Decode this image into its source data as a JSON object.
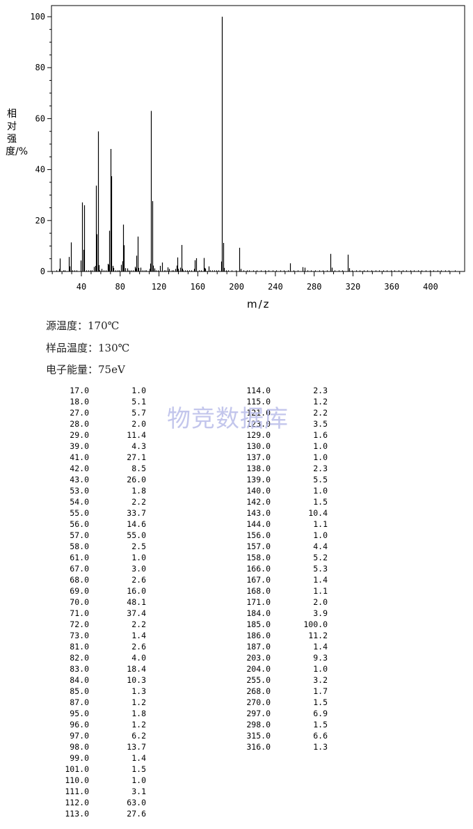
{
  "chart_data": {
    "type": "bar",
    "title": "",
    "xlabel": "m/z",
    "ylabel": "相对强度/%",
    "xlim": [
      10,
      430
    ],
    "ylim": [
      0,
      100
    ],
    "x_ticks": [
      40,
      80,
      120,
      160,
      200,
      240,
      280,
      320,
      360,
      400
    ],
    "y_ticks": [
      0,
      20,
      40,
      60,
      80,
      100
    ],
    "grid": false,
    "peaks": [
      [
        17.0,
        1.0
      ],
      [
        18.0,
        5.1
      ],
      [
        27.0,
        5.7
      ],
      [
        28.0,
        2.0
      ],
      [
        29.0,
        11.4
      ],
      [
        39.0,
        4.3
      ],
      [
        41.0,
        27.1
      ],
      [
        42.0,
        8.5
      ],
      [
        43.0,
        26.0
      ],
      [
        53.0,
        1.8
      ],
      [
        54.0,
        2.2
      ],
      [
        55.0,
        33.7
      ],
      [
        56.0,
        14.6
      ],
      [
        57.0,
        55.0
      ],
      [
        58.0,
        2.5
      ],
      [
        61.0,
        1.0
      ],
      [
        67.0,
        3.0
      ],
      [
        68.0,
        2.6
      ],
      [
        69.0,
        16.0
      ],
      [
        70.0,
        48.1
      ],
      [
        71.0,
        37.4
      ],
      [
        72.0,
        2.2
      ],
      [
        73.0,
        1.4
      ],
      [
        81.0,
        2.6
      ],
      [
        82.0,
        4.0
      ],
      [
        83.0,
        18.4
      ],
      [
        84.0,
        10.3
      ],
      [
        85.0,
        1.3
      ],
      [
        87.0,
        1.2
      ],
      [
        95.0,
        1.8
      ],
      [
        96.0,
        1.2
      ],
      [
        97.0,
        6.2
      ],
      [
        98.0,
        13.7
      ],
      [
        99.0,
        1.4
      ],
      [
        101.0,
        1.5
      ],
      [
        110.0,
        1.0
      ],
      [
        111.0,
        3.1
      ],
      [
        112.0,
        63.0
      ],
      [
        113.0,
        27.6
      ],
      [
        114.0,
        2.3
      ],
      [
        115.0,
        1.2
      ],
      [
        121.0,
        2.2
      ],
      [
        123.0,
        3.5
      ],
      [
        129.0,
        1.6
      ],
      [
        130.0,
        1.0
      ],
      [
        137.0,
        1.0
      ],
      [
        138.0,
        2.3
      ],
      [
        139.0,
        5.5
      ],
      [
        140.0,
        1.0
      ],
      [
        142.0,
        1.5
      ],
      [
        143.0,
        10.4
      ],
      [
        144.0,
        1.1
      ],
      [
        156.0,
        1.0
      ],
      [
        157.0,
        4.4
      ],
      [
        158.0,
        5.2
      ],
      [
        166.0,
        5.3
      ],
      [
        167.0,
        1.4
      ],
      [
        168.0,
        1.1
      ],
      [
        171.0,
        2.0
      ],
      [
        184.0,
        3.9
      ],
      [
        185.0,
        100.0
      ],
      [
        186.0,
        11.2
      ],
      [
        187.0,
        1.4
      ],
      [
        203.0,
        9.3
      ],
      [
        204.0,
        1.0
      ],
      [
        255.0,
        3.2
      ],
      [
        268.0,
        1.7
      ],
      [
        270.0,
        1.5
      ],
      [
        297.0,
        6.9
      ],
      [
        298.0,
        1.5
      ],
      [
        315.0,
        6.6
      ],
      [
        316.0,
        1.3
      ]
    ],
    "noise_peaks_x": [
      14,
      21,
      23,
      31,
      33,
      35,
      45,
      47,
      49,
      51,
      59,
      63,
      65,
      75,
      77,
      79,
      89,
      91,
      93,
      103,
      105,
      107,
      117,
      119,
      125,
      127,
      133,
      135,
      145,
      147,
      149,
      151,
      153,
      161,
      163,
      173,
      175,
      177,
      179,
      181,
      189,
      191,
      195,
      199,
      207,
      211,
      213,
      217,
      221,
      225,
      229,
      233,
      237,
      241,
      245,
      249,
      253,
      259,
      263,
      273,
      277,
      281,
      285,
      289,
      293,
      301,
      305,
      309,
      319,
      323,
      327,
      331,
      335,
      339,
      343,
      347,
      351,
      355,
      359,
      363,
      367,
      371,
      375,
      379,
      383,
      387,
      391,
      395,
      399,
      403,
      407,
      411,
      415,
      419,
      425
    ]
  },
  "info": {
    "source_temp": "源温度：170℃",
    "sample_temp": "样品温度：130℃",
    "electron_energy": "电子能量：75eV"
  },
  "watermark": "物竞数据库",
  "table_left": [
    [
      "17.0",
      "1.0"
    ],
    [
      "18.0",
      "5.1"
    ],
    [
      "27.0",
      "5.7"
    ],
    [
      "28.0",
      "2.0"
    ],
    [
      "29.0",
      "11.4"
    ],
    [
      "39.0",
      "4.3"
    ],
    [
      "41.0",
      "27.1"
    ],
    [
      "42.0",
      "8.5"
    ],
    [
      "43.0",
      "26.0"
    ],
    [
      "53.0",
      "1.8"
    ],
    [
      "54.0",
      "2.2"
    ],
    [
      "55.0",
      "33.7"
    ],
    [
      "56.0",
      "14.6"
    ],
    [
      "57.0",
      "55.0"
    ],
    [
      "58.0",
      "2.5"
    ],
    [
      "61.0",
      "1.0"
    ],
    [
      "67.0",
      "3.0"
    ],
    [
      "68.0",
      "2.6"
    ],
    [
      "69.0",
      "16.0"
    ],
    [
      "70.0",
      "48.1"
    ],
    [
      "71.0",
      "37.4"
    ],
    [
      "72.0",
      "2.2"
    ],
    [
      "73.0",
      "1.4"
    ],
    [
      "81.0",
      "2.6"
    ],
    [
      "82.0",
      "4.0"
    ],
    [
      "83.0",
      "18.4"
    ],
    [
      "84.0",
      "10.3"
    ],
    [
      "85.0",
      "1.3"
    ],
    [
      "87.0",
      "1.2"
    ],
    [
      "95.0",
      "1.8"
    ],
    [
      "96.0",
      "1.2"
    ],
    [
      "97.0",
      "6.2"
    ],
    [
      "98.0",
      "13.7"
    ],
    [
      "99.0",
      "1.4"
    ],
    [
      "101.0",
      "1.5"
    ],
    [
      "110.0",
      "1.0"
    ],
    [
      "111.0",
      "3.1"
    ],
    [
      "112.0",
      "63.0"
    ],
    [
      "113.0",
      "27.6"
    ]
  ],
  "table_right": [
    [
      "114.0",
      "2.3"
    ],
    [
      "115.0",
      "1.2"
    ],
    [
      "121.0",
      "2.2"
    ],
    [
      "123.0",
      "3.5"
    ],
    [
      "129.0",
      "1.6"
    ],
    [
      "130.0",
      "1.0"
    ],
    [
      "137.0",
      "1.0"
    ],
    [
      "138.0",
      "2.3"
    ],
    [
      "139.0",
      "5.5"
    ],
    [
      "140.0",
      "1.0"
    ],
    [
      "142.0",
      "1.5"
    ],
    [
      "143.0",
      "10.4"
    ],
    [
      "144.0",
      "1.1"
    ],
    [
      "156.0",
      "1.0"
    ],
    [
      "157.0",
      "4.4"
    ],
    [
      "158.0",
      "5.2"
    ],
    [
      "166.0",
      "5.3"
    ],
    [
      "167.0",
      "1.4"
    ],
    [
      "168.0",
      "1.1"
    ],
    [
      "171.0",
      "2.0"
    ],
    [
      "184.0",
      "3.9"
    ],
    [
      "185.0",
      "100.0"
    ],
    [
      "186.0",
      "11.2"
    ],
    [
      "187.0",
      "1.4"
    ],
    [
      "203.0",
      "9.3"
    ],
    [
      "204.0",
      "1.0"
    ],
    [
      "255.0",
      "3.2"
    ],
    [
      "268.0",
      "1.7"
    ],
    [
      "270.0",
      "1.5"
    ],
    [
      "297.0",
      "6.9"
    ],
    [
      "298.0",
      "1.5"
    ],
    [
      "315.0",
      "6.6"
    ],
    [
      "316.0",
      "1.3"
    ]
  ]
}
